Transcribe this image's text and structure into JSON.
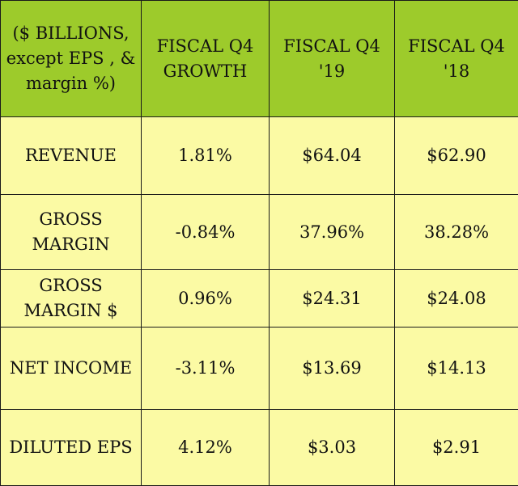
{
  "colors": {
    "header_bg": "#9dcb2b",
    "body_bg": "#fbfaa4",
    "border": "#1a1a1a",
    "text": "#111111"
  },
  "chart_data": {
    "type": "table",
    "columns": [
      [
        "($ BILLIONS,",
        "except EPS , &",
        "margin %)"
      ],
      [
        "FISCAL Q4",
        "GROWTH"
      ],
      [
        "FISCAL Q4",
        "'19"
      ],
      [
        "FISCAL Q4",
        "'18"
      ]
    ],
    "rows": [
      {
        "label": [
          "REVENUE"
        ],
        "values": [
          "1.81%",
          "$64.04",
          "$62.90"
        ]
      },
      {
        "label": [
          "GROSS",
          "MARGIN"
        ],
        "values": [
          "-0.84%",
          "37.96%",
          "38.28%"
        ]
      },
      {
        "label": [
          "GROSS",
          "MARGIN $"
        ],
        "values": [
          "0.96%",
          "$24.31",
          "$24.08"
        ]
      },
      {
        "label": [
          "NET INCOME"
        ],
        "values": [
          "-3.11%",
          "$13.69",
          "$14.13"
        ]
      },
      {
        "label": [
          "DILUTED EPS"
        ],
        "values": [
          "4.12%",
          "$3.03",
          "$2.91"
        ]
      }
    ]
  }
}
